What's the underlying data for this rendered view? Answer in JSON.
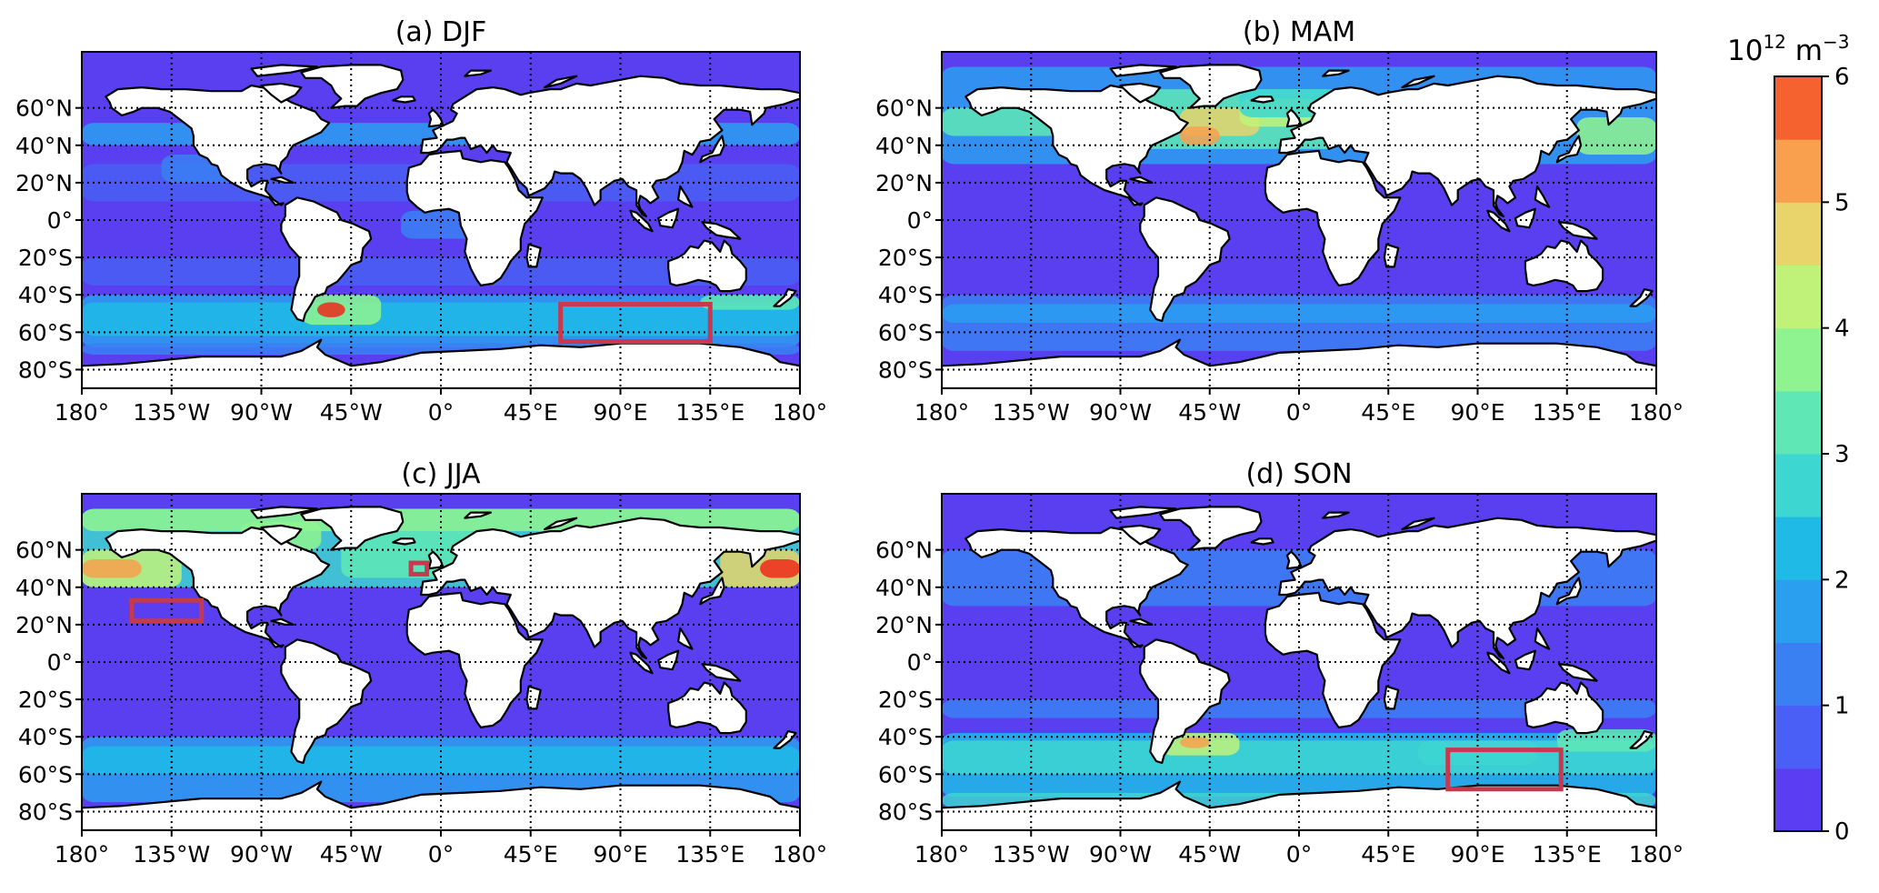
{
  "panels": [
    {
      "id": "djf",
      "title": "(a) DJF"
    },
    {
      "id": "mam",
      "title": "(b) MAM"
    },
    {
      "id": "jja",
      "title": "(c) JJA"
    },
    {
      "id": "son",
      "title": "(d) SON"
    }
  ],
  "lat_tick_labels": [
    "60°N",
    "40°N",
    "20°N",
    "0°",
    "20°S",
    "40°S",
    "60°S",
    "80°S"
  ],
  "lat_tick_values": [
    60,
    40,
    20,
    0,
    -20,
    -40,
    -60,
    -80
  ],
  "lon_tick_labels": [
    "180°",
    "135°W",
    "90°W",
    "45°W",
    "0°",
    "45°E",
    "90°E",
    "135°E",
    "180°"
  ],
  "lon_tick_values": [
    -180,
    -135,
    -90,
    -45,
    0,
    45,
    90,
    135,
    180
  ],
  "lat_range": [
    -90,
    90
  ],
  "lon_range": [
    -180,
    180
  ],
  "colorbar": {
    "unit_base": "10",
    "unit_exp": "12",
    "unit_rest": " m",
    "unit_exp2": "−3",
    "ticks": [
      "0",
      "1",
      "2",
      "3",
      "4",
      "5",
      "6"
    ],
    "range": [
      0,
      6
    ],
    "levels": 12,
    "colormap": "rainbow"
  },
  "colors": {
    "ocean_background": "#5a3ff0",
    "land": "#ffffff",
    "coast": "#000000",
    "box": "#c8384e"
  }
}
